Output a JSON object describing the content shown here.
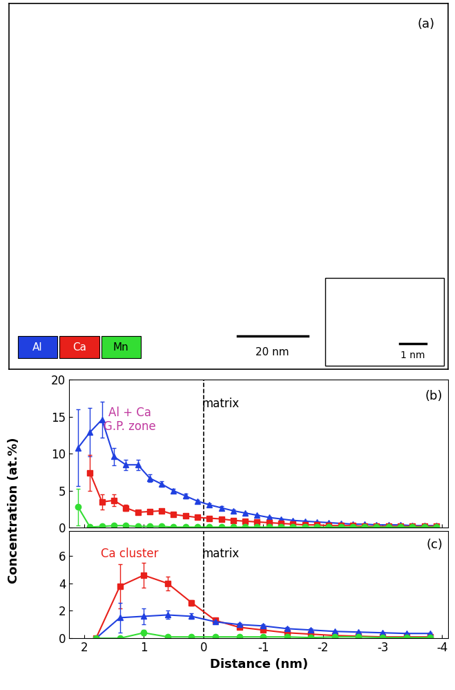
{
  "panel_a": {
    "label": "(a)",
    "scale_bar": "20 nm",
    "inset_scale_bar": "1 nm",
    "key": [
      {
        "label": "Al",
        "color": "#2040e0"
      },
      {
        "label": "Ca",
        "color": "#e8201a"
      },
      {
        "label": "Mn",
        "color": "#33dd33"
      }
    ]
  },
  "figure": {
    "y_label": "Concentration (at.%)"
  },
  "chart_data": [
    {
      "type": "line",
      "panel_label": "(b)",
      "annotations": [
        {
          "text": "Al + Ca\nG.P. zone",
          "color": "#c0399f"
        },
        {
          "text": "matrix",
          "color": "#000000"
        }
      ],
      "reference_line": 0,
      "x": [
        2.1,
        1.9,
        1.7,
        1.5,
        1.3,
        1.1,
        0.9,
        0.7,
        0.5,
        0.3,
        0.1,
        -0.1,
        -0.3,
        -0.5,
        -0.7,
        -0.9,
        -1.1,
        -1.3,
        -1.5,
        -1.7,
        -1.9,
        -2.1,
        -2.3,
        -2.5,
        -2.7,
        -2.9,
        -3.1,
        -3.3,
        -3.5,
        -3.7,
        -3.9
      ],
      "xlim": [
        2.25,
        -4.1
      ],
      "xticks": [
        2,
        1,
        0,
        -1,
        -2,
        -3,
        -4
      ],
      "ylim": [
        0,
        20
      ],
      "yticks": [
        0,
        5,
        10,
        15,
        20
      ],
      "tick_labels": "y",
      "series": [
        {
          "color": "#2040e0",
          "marker": "triangle",
          "values": [
            10.8,
            12.9,
            14.6,
            9.6,
            8.5,
            8.5,
            6.7,
            5.9,
            5.0,
            4.3,
            3.6,
            3.1,
            2.7,
            2.3,
            2.0,
            1.7,
            1.4,
            1.2,
            1.0,
            0.9,
            0.8,
            0.7,
            0.6,
            0.5,
            0.5,
            0.4,
            0.4,
            0.4,
            0.3,
            0.3,
            0.3
          ],
          "errors": [
            5.2,
            3.3,
            2.4,
            1.2,
            0.7,
            0.7,
            0.5,
            0.4,
            0.3,
            0.3,
            0.2,
            0.2,
            0.2,
            0.2,
            0.1,
            0.1,
            0.1,
            0.1,
            0.1,
            0.1,
            0.1,
            0.1,
            0.1,
            0.1,
            0.1,
            0.1,
            0.1,
            0.1,
            0.1,
            0.1,
            0.1
          ]
        },
        {
          "color": "#e8201a",
          "marker": "square",
          "values": [
            null,
            7.4,
            3.5,
            3.7,
            2.7,
            2.1,
            2.2,
            2.3,
            1.8,
            1.6,
            1.4,
            1.3,
            1.2,
            1.0,
            0.9,
            0.8,
            0.7,
            0.6,
            0.5,
            0.4,
            0.4,
            0.3,
            0.3,
            0.3,
            0.2,
            0.2,
            0.2,
            0.2,
            0.2,
            0.2,
            0.2
          ],
          "errors": [
            null,
            2.4,
            1.0,
            0.8,
            0.4,
            0.3,
            0.3,
            0.3,
            0.2,
            0.2,
            0.2,
            0.1,
            0.1,
            0.1,
            0.1,
            0.1,
            0.1,
            0.1,
            0.1,
            0.1,
            0.1,
            0.1,
            0.1,
            0.1,
            0.1,
            0.1,
            0.1,
            0.1,
            0.1,
            0.1,
            0.1
          ]
        },
        {
          "color": "#33dd33",
          "marker": "circle",
          "values": [
            2.8,
            0.1,
            0.2,
            0.3,
            0.3,
            0.2,
            0.2,
            0.2,
            0.1,
            0.1,
            0.1,
            0.1,
            0.1,
            0.1,
            0.1,
            0.1,
            0.1,
            0.1,
            0.1,
            0.1,
            0.1,
            0.1,
            0.1,
            0.1,
            0.1,
            0.1,
            0.1,
            0.1,
            0.1,
            0.1,
            0.1
          ],
          "errors": [
            2.5,
            0.1,
            0.1,
            0.1,
            0.1,
            0.1,
            0.1,
            0.1,
            null,
            null,
            null,
            null,
            null,
            null,
            null,
            null,
            null,
            null,
            null,
            null,
            null,
            null,
            null,
            null,
            null,
            null,
            null,
            null,
            null,
            null,
            null
          ]
        }
      ]
    },
    {
      "type": "line",
      "panel_label": "(c)",
      "x_label": "Distance (nm)",
      "annotations": [
        {
          "text": "Ca cluster",
          "color": "#e8201a"
        },
        {
          "text": "matrix",
          "color": "#000000"
        }
      ],
      "reference_line": 0,
      "x": [
        1.8,
        1.4,
        1.0,
        0.6,
        0.2,
        -0.2,
        -0.6,
        -1.0,
        -1.4,
        -1.8,
        -2.2,
        -2.6,
        -3.0,
        -3.4,
        -3.8
      ],
      "xlim": [
        2.25,
        -4.1
      ],
      "xticks": [
        2,
        1,
        0,
        -1,
        -2,
        -3,
        -4
      ],
      "ylim": [
        0,
        7.8
      ],
      "yticks": [
        0,
        2,
        4,
        6
      ],
      "series": [
        {
          "color": "#e8201a",
          "marker": "square",
          "values": [
            0,
            3.8,
            4.6,
            4.0,
            2.6,
            1.3,
            0.8,
            0.6,
            0.4,
            0.3,
            0.2,
            0.15,
            0.1,
            0.1,
            0.1
          ],
          "errors": [
            null,
            1.6,
            0.9,
            0.5,
            0.2,
            0.1,
            0.1,
            0.1,
            0.1,
            0.1,
            0.05,
            0.05,
            0.05,
            0.05,
            0.05
          ]
        },
        {
          "color": "#2040e0",
          "marker": "triangle",
          "values": [
            0,
            1.5,
            1.6,
            1.7,
            1.6,
            1.2,
            1.0,
            0.9,
            0.7,
            0.6,
            0.5,
            0.45,
            0.4,
            0.35,
            0.35
          ],
          "errors": [
            null,
            1.1,
            0.6,
            0.3,
            0.2,
            0.1,
            0.1,
            0.1,
            0.1,
            0.1,
            0.05,
            0.05,
            0.05,
            0.05,
            0.05
          ]
        },
        {
          "color": "#33dd33",
          "marker": "circle",
          "values": [
            0,
            0,
            0.4,
            0.1,
            0.1,
            0.1,
            0.1,
            0.1,
            0.1,
            0.05,
            0.1,
            0.1,
            0.05,
            0.05,
            0.05
          ],
          "errors": [
            null,
            null,
            0.2,
            null,
            null,
            null,
            null,
            null,
            null,
            null,
            null,
            null,
            null,
            null,
            null
          ]
        }
      ]
    }
  ]
}
